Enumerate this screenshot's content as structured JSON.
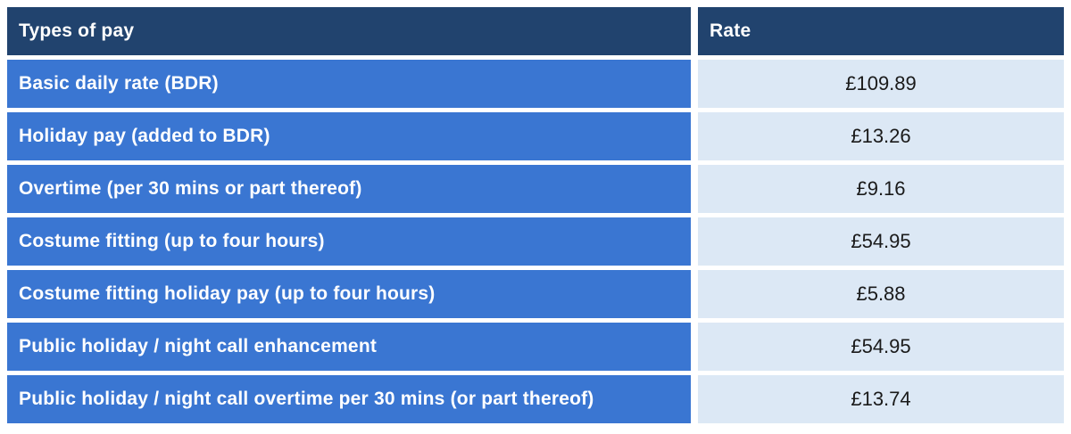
{
  "colors": {
    "header_bg": "#21436e",
    "header_text": "#ffffff",
    "row_bg": "#3a76d2",
    "row_text": "#ffffff",
    "rate_bg": "#dce8f5",
    "rate_text": "#1a1a1a",
    "page_bg": "#ffffff"
  },
  "table": {
    "columns": [
      "Types of pay",
      "Rate"
    ],
    "rows": [
      {
        "type": "Basic daily rate (BDR)",
        "rate": "£109.89"
      },
      {
        "type": "Holiday pay (added to BDR)",
        "rate": "£13.26"
      },
      {
        "type": "Overtime (per 30 mins or part thereof)",
        "rate": "£9.16"
      },
      {
        "type": "Costume fitting (up to four hours)",
        "rate": "£54.95"
      },
      {
        "type": "Costume fitting holiday pay (up to four hours)",
        "rate": "£5.88"
      },
      {
        "type": "Public holiday / night call enhancement",
        "rate": "£54.95"
      },
      {
        "type": "Public holiday / night call overtime per 30 mins (or part thereof)",
        "rate": "£13.74"
      }
    ]
  },
  "chart_data": {
    "type": "table",
    "columns": [
      "Types of pay",
      "Rate"
    ],
    "rows": [
      [
        "Basic daily rate (BDR)",
        "£109.89"
      ],
      [
        "Holiday pay (added to BDR)",
        "£13.26"
      ],
      [
        "Overtime (per 30 mins or part thereof)",
        "£9.16"
      ],
      [
        "Costume fitting (up to four hours)",
        "£54.95"
      ],
      [
        "Costume fitting holiday pay (up to four hours)",
        "£5.88"
      ],
      [
        "Public holiday / night call enhancement",
        "£54.95"
      ],
      [
        "Public holiday / night call overtime per 30 mins (or part thereof)",
        "£13.74"
      ]
    ],
    "values_numeric": [
      109.89,
      13.26,
      9.16,
      54.95,
      5.88,
      54.95,
      13.74
    ]
  }
}
